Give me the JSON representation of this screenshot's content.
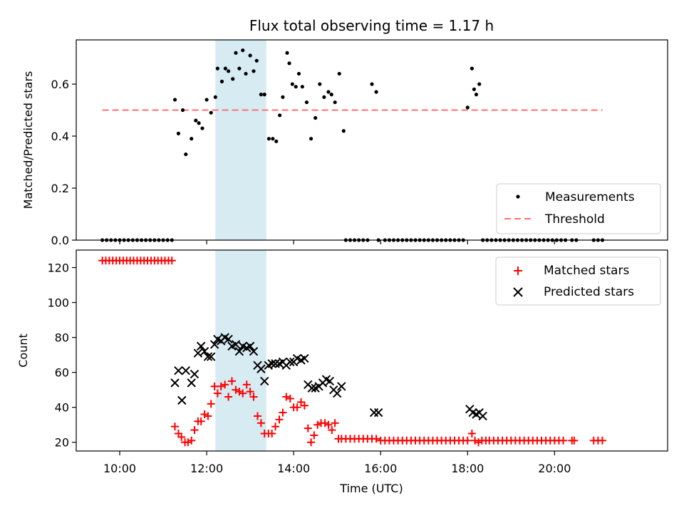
{
  "chart_data": [
    {
      "type": "scatter",
      "title": "Flux total observing time = 1.17 h",
      "xlabel": "",
      "ylabel": "Matched/Predicted stars",
      "xlim": [
        9.0,
        22.6
      ],
      "ylim": [
        0.0,
        0.77
      ],
      "yticks": [
        0.0,
        0.2,
        0.4,
        0.6
      ],
      "ytick_labels": [
        "0.0",
        "0.2",
        "0.4",
        "0.6"
      ],
      "shaded_interval": [
        12.2,
        13.37
      ],
      "shaded_color": "#add8e6",
      "legend": [
        "Measurements",
        "Threshold"
      ],
      "legend_position": "lower right",
      "series": [
        {
          "name": "Measurements",
          "marker": "dot",
          "color": "#000000",
          "x": [
            9.6,
            9.7,
            9.8,
            9.9,
            10.0,
            10.1,
            10.2,
            10.3,
            10.4,
            10.5,
            10.6,
            10.7,
            10.8,
            10.9,
            11.0,
            11.1,
            11.2,
            11.27,
            11.35,
            11.45,
            11.52,
            11.65,
            11.75,
            11.82,
            11.9,
            12.0,
            12.1,
            12.2,
            12.25,
            12.35,
            12.43,
            12.5,
            12.6,
            12.67,
            12.75,
            12.83,
            12.9,
            13.0,
            13.08,
            13.15,
            13.25,
            13.33,
            13.43,
            13.52,
            13.6,
            13.68,
            13.75,
            13.85,
            13.9,
            13.97,
            14.05,
            14.12,
            14.2,
            14.3,
            14.4,
            14.5,
            14.6,
            14.7,
            14.8,
            14.87,
            14.95,
            15.05,
            15.15,
            15.2,
            15.3,
            15.4,
            15.5,
            15.6,
            15.7,
            15.8,
            15.9,
            15.95,
            16.1,
            16.2,
            16.3,
            16.4,
            16.5,
            16.6,
            16.7,
            16.8,
            16.9,
            17.0,
            17.1,
            17.2,
            17.3,
            17.4,
            17.5,
            17.6,
            17.7,
            17.8,
            17.9,
            18.0,
            18.1,
            18.15,
            18.2,
            18.27,
            18.35,
            18.45,
            18.55,
            18.65,
            18.75,
            18.85,
            18.95,
            19.05,
            19.15,
            19.25,
            19.35,
            19.45,
            19.55,
            19.65,
            19.75,
            19.85,
            19.95,
            20.05,
            20.15,
            20.25,
            20.4,
            20.5,
            20.9,
            21.0,
            21.1
          ],
          "y": [
            0,
            0,
            0,
            0,
            0,
            0,
            0,
            0,
            0,
            0,
            0,
            0,
            0,
            0,
            0,
            0,
            0,
            0.54,
            0.41,
            0.5,
            0.33,
            0.39,
            0.46,
            0.45,
            0.43,
            0.54,
            0.49,
            0.55,
            0.66,
            0.61,
            0.66,
            0.65,
            0.62,
            0.72,
            0.66,
            0.73,
            0.64,
            0.71,
            0.65,
            0.69,
            0.56,
            0.56,
            0.39,
            0.39,
            0.38,
            0.48,
            0.55,
            0.72,
            0.68,
            0.6,
            0.59,
            0.64,
            0.59,
            0.53,
            0.39,
            0.47,
            0.6,
            0.55,
            0.57,
            0.56,
            0.53,
            0.64,
            0.42,
            0,
            0,
            0,
            0,
            0,
            0,
            0.6,
            0.57,
            0,
            0,
            0,
            0,
            0,
            0,
            0,
            0,
            0,
            0,
            0,
            0,
            0,
            0,
            0,
            0,
            0,
            0,
            0,
            0,
            0.51,
            0.66,
            0.58,
            0.56,
            0.6,
            0,
            0,
            0,
            0,
            0,
            0,
            0,
            0,
            0,
            0,
            0,
            0,
            0,
            0,
            0,
            0,
            0,
            0,
            0,
            0,
            0,
            0,
            0,
            0,
            0
          ]
        },
        {
          "name": "Threshold",
          "marker": "dashed-line",
          "color": "#ff7070",
          "x": [
            9.6,
            21.1
          ],
          "y": [
            0.5,
            0.5
          ]
        }
      ]
    },
    {
      "type": "scatter",
      "title": "",
      "xlabel": "Time (UTC)",
      "ylabel": "Count",
      "xlim": [
        9.0,
        22.6
      ],
      "ylim": [
        15,
        130
      ],
      "yticks": [
        20,
        40,
        60,
        80,
        100,
        120
      ],
      "ytick_labels": [
        "20",
        "40",
        "60",
        "80",
        "100",
        "120"
      ],
      "xticks": [
        10,
        12,
        14,
        16,
        18,
        20
      ],
      "xtick_labels": [
        "10:00",
        "12:00",
        "14:00",
        "16:00",
        "18:00",
        "20:00"
      ],
      "shaded_interval": [
        12.2,
        13.37
      ],
      "shaded_color": "#add8e6",
      "legend": [
        "Matched stars",
        "Predicted stars"
      ],
      "legend_position": "upper right",
      "series": [
        {
          "name": "Matched stars",
          "marker": "plus",
          "color": "#ff0000",
          "x": [
            9.6,
            9.68,
            9.76,
            9.84,
            9.92,
            10.0,
            10.08,
            10.16,
            10.24,
            10.32,
            10.4,
            10.48,
            10.56,
            10.64,
            10.72,
            10.8,
            10.88,
            10.96,
            11.04,
            11.12,
            11.2,
            11.27,
            11.35,
            11.42,
            11.5,
            11.57,
            11.65,
            11.72,
            11.8,
            11.87,
            11.95,
            12.03,
            12.1,
            12.18,
            12.25,
            12.33,
            12.42,
            12.5,
            12.58,
            12.67,
            12.75,
            12.83,
            12.92,
            13.0,
            13.08,
            13.17,
            13.25,
            13.33,
            13.42,
            13.5,
            13.58,
            13.67,
            13.75,
            13.83,
            13.92,
            14.0,
            14.08,
            14.17,
            14.25,
            14.33,
            14.4,
            14.47,
            14.55,
            14.63,
            14.72,
            14.8,
            14.88,
            14.95,
            15.03,
            15.1,
            15.2,
            15.3,
            15.4,
            15.5,
            15.6,
            15.7,
            15.8,
            15.9,
            16.0,
            16.1,
            16.2,
            16.3,
            16.4,
            16.5,
            16.6,
            16.7,
            16.8,
            16.9,
            17.0,
            17.1,
            17.2,
            17.3,
            17.4,
            17.5,
            17.6,
            17.7,
            17.8,
            17.9,
            18.0,
            18.1,
            18.17,
            18.25,
            18.33,
            18.42,
            18.5,
            18.6,
            18.7,
            18.8,
            18.9,
            19.0,
            19.1,
            19.2,
            19.3,
            19.4,
            19.5,
            19.6,
            19.7,
            19.8,
            19.9,
            20.0,
            20.1,
            20.2,
            20.4,
            20.45,
            20.9,
            21.0,
            21.1
          ],
          "y": [
            124,
            124,
            124,
            124,
            124,
            124,
            124,
            124,
            124,
            124,
            124,
            124,
            124,
            124,
            124,
            124,
            124,
            124,
            124,
            124,
            124,
            29,
            25,
            23,
            20,
            20,
            21,
            27,
            32,
            32,
            36,
            35,
            42,
            52,
            48,
            52,
            53,
            46,
            55,
            50,
            49,
            48,
            53,
            49,
            46,
            35,
            31,
            25,
            25,
            25,
            29,
            33,
            37,
            46,
            45,
            40,
            40,
            43,
            41,
            28,
            20,
            24,
            30,
            31,
            31,
            30,
            27,
            31,
            22,
            22,
            22,
            22,
            22,
            22,
            22,
            22,
            22,
            22,
            21,
            21,
            21,
            21,
            21,
            21,
            21,
            21,
            21,
            21,
            21,
            21,
            21,
            21,
            21,
            21,
            21,
            21,
            21,
            21,
            21,
            25,
            21,
            20,
            21,
            21,
            21,
            21,
            21,
            21,
            21,
            21,
            21,
            21,
            21,
            21,
            21,
            21,
            21,
            21,
            21,
            21,
            21,
            21,
            21,
            21,
            21,
            21,
            21
          ]
        },
        {
          "name": "Predicted stars",
          "marker": "x",
          "color": "#000000",
          "x": [
            11.27,
            11.35,
            11.43,
            11.52,
            11.65,
            11.72,
            11.8,
            11.87,
            11.95,
            12.03,
            12.1,
            12.18,
            12.25,
            12.33,
            12.42,
            12.5,
            12.58,
            12.67,
            12.75,
            12.83,
            12.92,
            13.0,
            13.08,
            13.17,
            13.25,
            13.33,
            13.42,
            13.5,
            13.58,
            13.67,
            13.75,
            13.83,
            13.92,
            14.0,
            14.08,
            14.17,
            14.25,
            14.33,
            14.42,
            14.5,
            14.58,
            14.67,
            14.75,
            14.83,
            14.92,
            15.0,
            15.1,
            15.85,
            15.95,
            18.05,
            18.12,
            18.2,
            18.27,
            18.35
          ],
          "y": [
            54,
            61,
            44,
            61,
            54,
            59,
            71,
            75,
            72,
            69,
            69,
            76,
            79,
            78,
            80,
            79,
            75,
            76,
            72,
            75,
            74,
            75,
            72,
            64,
            62,
            55,
            64,
            65,
            65,
            65,
            66,
            64,
            66,
            66,
            68,
            67,
            68,
            53,
            51,
            51,
            52,
            54,
            56,
            55,
            50,
            48,
            52,
            37,
            37,
            39,
            37,
            36,
            37,
            35
          ]
        }
      ]
    }
  ]
}
